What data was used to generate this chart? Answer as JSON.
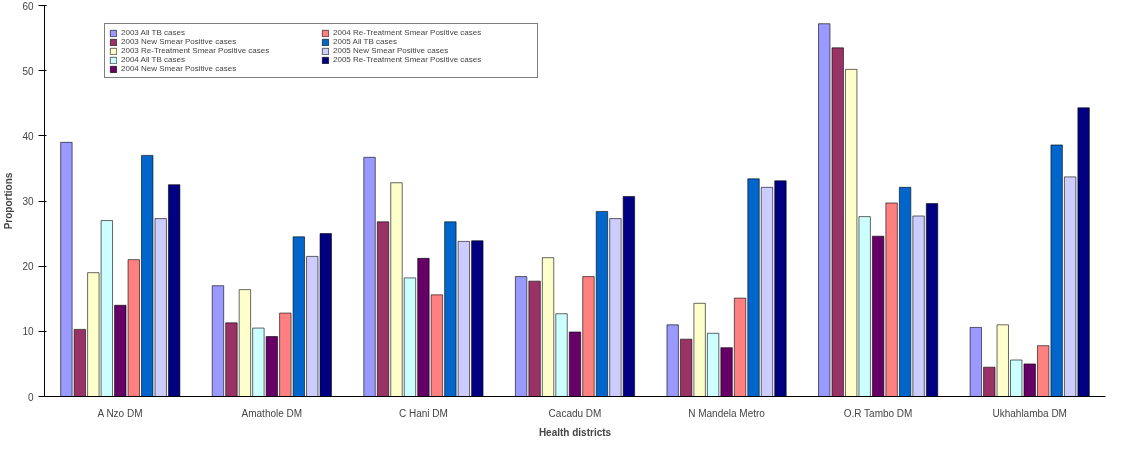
{
  "chart_data": {
    "type": "bar",
    "xlabel": "Health districts",
    "ylabel": "Proportions",
    "categories": [
      "A Nzo DM",
      "Amathole DM",
      "C Hani DM",
      "Cacadu DM",
      "N Mandela Metro",
      "O.R Tambo DM",
      "Ukhahlamba DM"
    ],
    "series": [
      {
        "name": "2003 All TB cases",
        "color": "#9999ff",
        "values": [
          39,
          17,
          36.7,
          18.4,
          11,
          57.2,
          10.6
        ]
      },
      {
        "name": "2003 New Smear Positive cases",
        "color": "#993366",
        "values": [
          10.3,
          11.3,
          26.8,
          17.7,
          8.8,
          53.5,
          4.5
        ]
      },
      {
        "name": "2003 Re-Treatment Smear Positive cases",
        "color": "#ffffcc",
        "values": [
          19,
          16.4,
          32.8,
          21.3,
          14.3,
          50.2,
          11
        ]
      },
      {
        "name": "2004 All TB cases",
        "color": "#ccffff",
        "values": [
          27,
          10.5,
          18.2,
          12.7,
          9.7,
          27.6,
          5.6
        ]
      },
      {
        "name": "2004 New Smear Positive cases",
        "color": "#660066",
        "values": [
          14,
          9.2,
          21.2,
          9.9,
          7.5,
          24.6,
          5
        ]
      },
      {
        "name": "2004 Re-Treatment Smear Positive cases",
        "color": "#ff8080",
        "values": [
          21,
          12.8,
          15.6,
          18.4,
          15.1,
          29.7,
          7.8
        ]
      },
      {
        "name": "2005 All TB cases",
        "color": "#0066cc",
        "values": [
          37,
          24.5,
          26.8,
          28.4,
          33.4,
          32.1,
          38.6
        ]
      },
      {
        "name": "2005 New Smear Positive cases",
        "color": "#ccccff",
        "values": [
          27.3,
          21.5,
          23.8,
          27.3,
          32.1,
          27.7,
          33.7
        ]
      },
      {
        "name": "2005 Re-Treatment Smear Positive cases",
        "color": "#000080",
        "values": [
          32.5,
          25,
          23.9,
          30.7,
          33.1,
          29.6,
          44.3
        ]
      }
    ],
    "ylim": [
      0,
      60
    ],
    "yticks": [
      0,
      10,
      20,
      30,
      40,
      50,
      60
    ],
    "grid": false,
    "legend": "top"
  }
}
